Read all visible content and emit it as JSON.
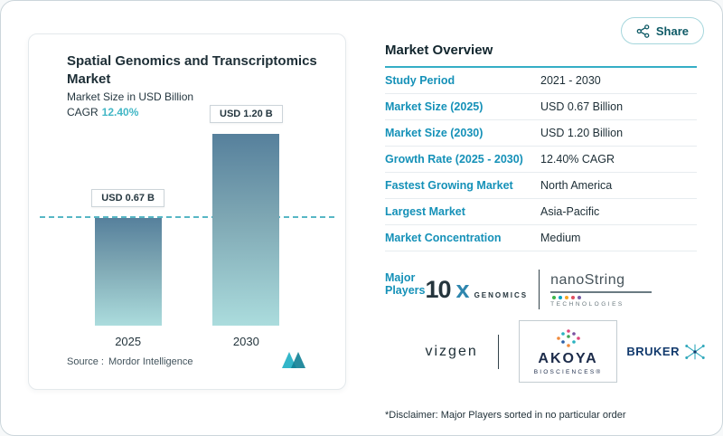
{
  "share": {
    "label": "Share"
  },
  "chart_card": {
    "title": "Spatial Genomics and Transcriptomics Market",
    "subtitle": "Market Size in USD Billion",
    "cagr_label": "CAGR",
    "cagr_value": "12.40%",
    "source_label": "Source :",
    "source_value": "Mordor Intelligence"
  },
  "chart_data": {
    "type": "bar",
    "title": "Spatial Genomics and Transcriptomics Market",
    "ylabel": "Market Size in USD Billion",
    "categories": [
      "2025",
      "2030"
    ],
    "values": [
      0.67,
      1.2
    ],
    "bar_labels": [
      "USD 0.67 B",
      "USD 1.20 B"
    ],
    "ylim": [
      0,
      1.3
    ],
    "reference_line": 0.67,
    "grid": false,
    "legend": false
  },
  "market_overview": {
    "title": "Market Overview",
    "rows": [
      {
        "label": "Study Period",
        "value": "2021 - 2030"
      },
      {
        "label": "Market Size (2025)",
        "value": "USD 0.67 Billion"
      },
      {
        "label": "Market Size (2030)",
        "value": "USD 1.20 Billion"
      },
      {
        "label": "Growth Rate (2025 - 2030)",
        "value": "12.40% CAGR"
      },
      {
        "label": "Fastest Growing Market",
        "value": "North America"
      },
      {
        "label": "Largest Market",
        "value": "Asia-Pacific"
      },
      {
        "label": "Market Concentration",
        "value": "Medium"
      }
    ],
    "major_players_label": "Major Players",
    "players": [
      {
        "name": "10x Genomics",
        "part1": "10",
        "part2": "x",
        "sub": "GENOMICS"
      },
      {
        "name": "NanoString Technologies",
        "main": "nanoString",
        "sub": "TECHNOLOGIES"
      },
      {
        "name": "Vizgen",
        "main": "vizgen"
      },
      {
        "name": "Akoya Biosciences",
        "main": "AKOYA",
        "sub": "BIOSCIENCES®"
      },
      {
        "name": "Bruker",
        "main": "BRUKER"
      }
    ],
    "disclaimer": "*Disclaimer: Major Players sorted in no particular order"
  },
  "colors": {
    "accent_teal": "#35aec6",
    "label_blue": "#1591b8",
    "dark_text": "#1d2e36",
    "bar_gradient_top": "#56809c",
    "bar_gradient_bottom": "#abdcdd",
    "dashed_line": "#57b7c5",
    "share_border": "#a5d6dc"
  }
}
